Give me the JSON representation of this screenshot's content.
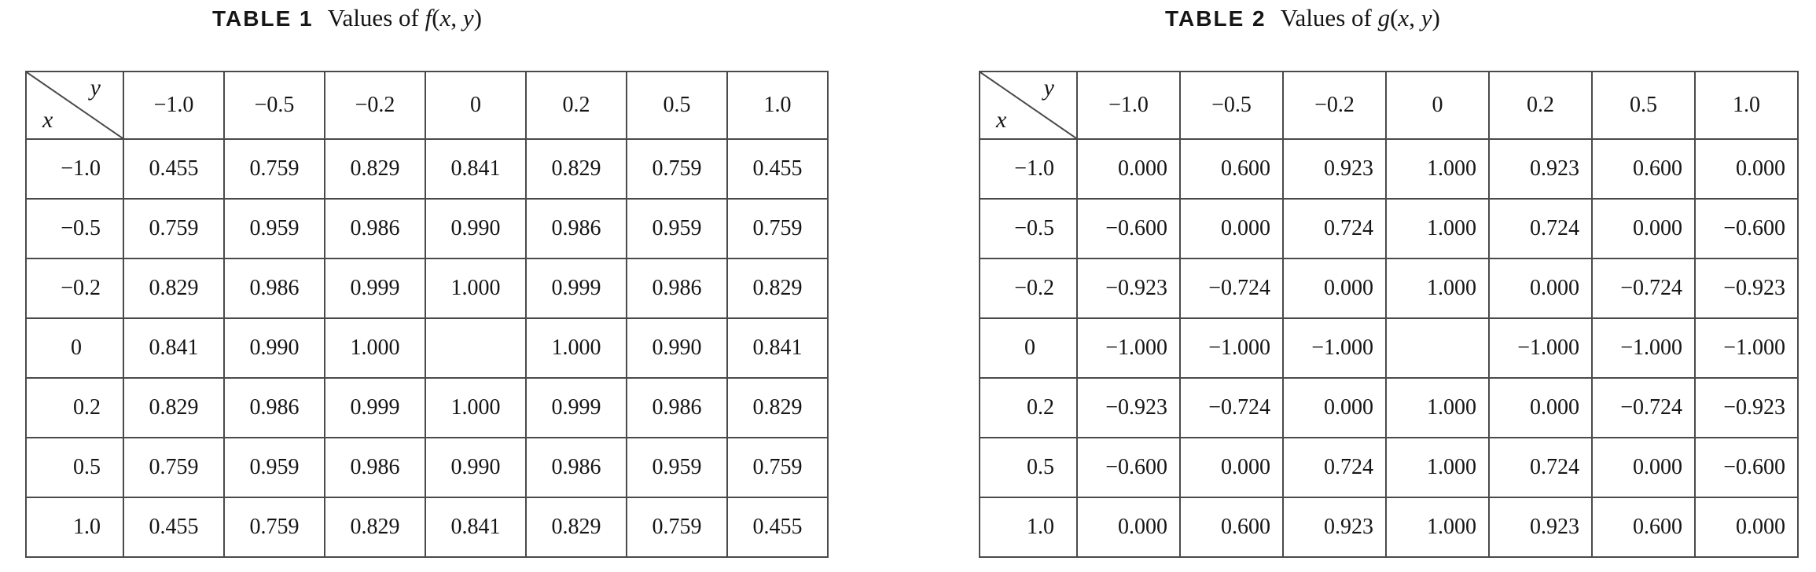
{
  "colors": {
    "value_blue": "#1d9ed9",
    "text_black": "#151515",
    "grid_line": "#4a4a4a",
    "background": "#ffffff"
  },
  "tables": [
    {
      "name": "table1",
      "title_runs": [
        {
          "t": "TABLE 1",
          "s": "label"
        },
        {
          "t": "Values of ",
          "s": "serif"
        },
        {
          "t": "f",
          "s": "italic"
        },
        {
          "t": "(",
          "s": "serif"
        },
        {
          "t": "x",
          "s": "italic"
        },
        {
          "t": ", ",
          "s": "serif"
        },
        {
          "t": "y",
          "s": "italic"
        },
        {
          "t": ")",
          "s": "serif"
        }
      ],
      "corner": {
        "top_var": "y",
        "left_var": "x"
      },
      "col_headers": [
        "−1.0",
        "−0.5",
        "−0.2",
        "0",
        "0.2",
        "0.5",
        "1.0"
      ],
      "row_headers": [
        "−1.0",
        "−0.5",
        "−0.2",
        "0",
        "0.2",
        "0.5",
        "1.0"
      ],
      "rows": [
        [
          "0.455",
          "0.759",
          "0.829",
          "0.841",
          "0.829",
          "0.759",
          "0.455"
        ],
        [
          "0.759",
          "0.959",
          "0.986",
          "0.990",
          "0.986",
          "0.959",
          "0.759"
        ],
        [
          "0.829",
          "0.986",
          "0.999",
          "1.000",
          "0.999",
          "0.986",
          "0.829"
        ],
        [
          "0.841",
          "0.990",
          "1.000",
          "",
          "1.000",
          "0.990",
          "0.841"
        ],
        [
          "0.829",
          "0.986",
          "0.999",
          "1.000",
          "0.999",
          "0.986",
          "0.829"
        ],
        [
          "0.759",
          "0.959",
          "0.986",
          "0.990",
          "0.986",
          "0.959",
          "0.759"
        ],
        [
          "0.455",
          "0.759",
          "0.829",
          "0.841",
          "0.829",
          "0.759",
          "0.455"
        ]
      ]
    },
    {
      "name": "table2",
      "title_runs": [
        {
          "t": "TABLE 2",
          "s": "label"
        },
        {
          "t": "Values of ",
          "s": "serif"
        },
        {
          "t": "g",
          "s": "italic"
        },
        {
          "t": "(",
          "s": "serif"
        },
        {
          "t": "x",
          "s": "italic"
        },
        {
          "t": ", ",
          "s": "serif"
        },
        {
          "t": "y",
          "s": "italic"
        },
        {
          "t": ")",
          "s": "serif"
        }
      ],
      "corner": {
        "top_var": "y",
        "left_var": "x"
      },
      "col_headers": [
        "−1.0",
        "−0.5",
        "−0.2",
        "0",
        "0.2",
        "0.5",
        "1.0"
      ],
      "row_headers": [
        "−1.0",
        "−0.5",
        "−0.2",
        "0",
        "0.2",
        "0.5",
        "1.0"
      ],
      "rows": [
        [
          "0.000",
          "0.600",
          "0.923",
          "1.000",
          "0.923",
          "0.600",
          "0.000"
        ],
        [
          "−0.600",
          "0.000",
          "0.724",
          "1.000",
          "0.724",
          "0.000",
          "−0.600"
        ],
        [
          "−0.923",
          "−0.724",
          "0.000",
          "1.000",
          "0.000",
          "−0.724",
          "−0.923"
        ],
        [
          "−1.000",
          "−1.000",
          "−1.000",
          "",
          "−1.000",
          "−1.000",
          "−1.000"
        ],
        [
          "−0.923",
          "−0.724",
          "0.000",
          "1.000",
          "0.000",
          "−0.724",
          "−0.923"
        ],
        [
          "−0.600",
          "0.000",
          "0.724",
          "1.000",
          "0.724",
          "0.000",
          "−0.600"
        ],
        [
          "0.000",
          "0.600",
          "0.923",
          "1.000",
          "0.923",
          "0.600",
          "0.000"
        ]
      ]
    }
  ]
}
